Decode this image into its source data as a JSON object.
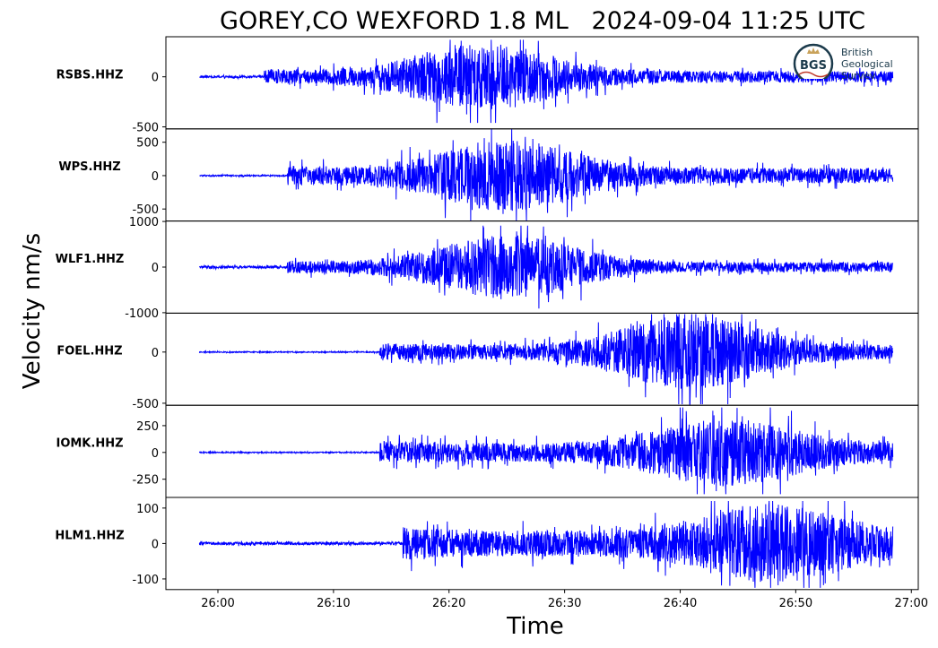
{
  "chart_data": {
    "type": "line",
    "title": "GOREY,CO WEXFORD 1.8 ML   2024-09-04 11:25 UTC",
    "xlabel": "Time",
    "ylabel": "Velocity nm/s",
    "x_ticks": [
      "26:00",
      "26:10",
      "26:20",
      "26:30",
      "26:40",
      "26:50",
      "27:00"
    ],
    "x_tick_minutes": [
      26,
      26.1667,
      26.3333,
      26.5,
      26.6667,
      26.8333,
      27
    ],
    "xlim": [
      25.925,
      27.01
    ],
    "trace_start": 25.9733,
    "trace_end": 26.9733,
    "line_color": "#0000ff",
    "series": [
      {
        "name": "RSBS.HHZ",
        "ylim": [
          -520,
          400
        ],
        "yticks": [
          0,
          -500
        ],
        "ytick_labels": [
          "0",
          "-500"
        ],
        "noise": 15,
        "onset": 26.0667,
        "p_amp": 90,
        "peak_time": 26.3833,
        "peak_amp": 400,
        "min": -460,
        "max": 370
      },
      {
        "name": "WPS.HHZ",
        "ylim": [
          -680,
          700
        ],
        "yticks": [
          500,
          0,
          -500
        ],
        "ytick_labels": [
          "500",
          "0",
          "-500"
        ],
        "noise": 15,
        "onset": 26.1,
        "p_amp": 200,
        "peak_time": 26.4167,
        "peak_amp": 600,
        "min": -680,
        "max": 700
      },
      {
        "name": "WLF1.HHZ",
        "ylim": [
          -1000,
          1000
        ],
        "yticks": [
          1000,
          0,
          -1000
        ],
        "ytick_labels": [
          "1000",
          "0",
          "-1000"
        ],
        "noise": 40,
        "onset": 26.1,
        "p_amp": 150,
        "peak_time": 26.4167,
        "peak_amp": 850,
        "min": -900,
        "max": 900
      },
      {
        "name": "FOEL.HHZ",
        "ylim": [
          -520,
          380
        ],
        "yticks": [
          0,
          -500
        ],
        "ytick_labels": [
          "0",
          "-500"
        ],
        "noise": 8,
        "onset": 26.2333,
        "p_amp": 120,
        "peak_time": 26.6833,
        "peak_amp": 420,
        "min": -510,
        "max": 370
      },
      {
        "name": "IOMK.HHZ",
        "ylim": [
          -420,
          440
        ],
        "yticks": [
          250,
          0,
          -250
        ],
        "ytick_labels": [
          "250",
          "0",
          "-250"
        ],
        "noise": 8,
        "onset": 26.2333,
        "p_amp": 150,
        "peak_time": 26.7333,
        "peak_amp": 330,
        "min": -390,
        "max": 420
      },
      {
        "name": "HLM1.HHZ",
        "ylim": [
          -130,
          130
        ],
        "yticks": [
          100,
          0,
          -100
        ],
        "ytick_labels": [
          "100",
          "0",
          "-100"
        ],
        "noise": 6,
        "onset": 26.2667,
        "p_amp": 60,
        "peak_time": 26.8,
        "peak_amp": 110,
        "min": -125,
        "max": 120
      }
    ],
    "grid": false,
    "legend": "none"
  },
  "logo": {
    "icon": "bgs-logo",
    "badge": "BGS",
    "text_lines": [
      "British",
      "Geological",
      "Survey"
    ]
  }
}
